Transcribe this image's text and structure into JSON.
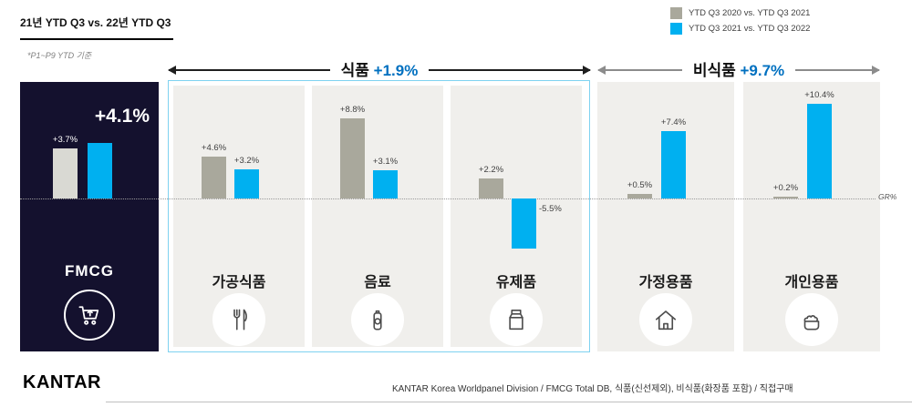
{
  "colors": {
    "gray_bar": "#a9a89c",
    "blue_bar": "#00b0f0",
    "fmcg_gray_bar": "#d9d9d3",
    "accent_blue": "#0070c0",
    "dark_panel": "#14112e"
  },
  "header": {
    "title": "21년 YTD Q3 vs. 22년 YTD Q3",
    "note": "*P1~P9 YTD 기준",
    "legend": [
      {
        "label": "YTD Q3 2020 vs. YTD Q3 2021"
      },
      {
        "label": "YTD Q3 2021 vs. YTD Q3 2022"
      }
    ]
  },
  "sections": {
    "food": {
      "name": "식품",
      "growth": "+1.9%"
    },
    "nonfood": {
      "name": "비식품",
      "growth": "+9.7%"
    }
  },
  "fmcg": {
    "headline": "+4.1%"
  },
  "axis": {
    "baseline_label": "GR%"
  },
  "chart_data": {
    "type": "bar",
    "title": "21년 YTD Q3 vs. 22년 YTD Q3",
    "categories": [
      "FMCG",
      "가공식품",
      "음료",
      "유제품",
      "가정용품",
      "개인용품"
    ],
    "series": [
      {
        "name": "YTD Q3 2020 vs. YTD Q3 2021",
        "color": "#a9a89c",
        "values": [
          3.7,
          4.6,
          8.8,
          2.2,
          0.5,
          0.2
        ]
      },
      {
        "name": "YTD Q3 2021 vs. YTD Q3 2022",
        "color": "#00b0f0",
        "values": [
          4.1,
          3.2,
          3.1,
          -5.5,
          7.4,
          10.4
        ]
      }
    ],
    "groups": [
      {
        "label": "식품",
        "growth": "+1.9%",
        "members": [
          "가공식품",
          "음료",
          "유제품"
        ]
      },
      {
        "label": "비식품",
        "growth": "+9.7%",
        "members": [
          "가정용품",
          "개인용품"
        ]
      }
    ],
    "ylabel": "GR%",
    "value_suffix": "%",
    "legend_position": "top-right",
    "grid": false
  },
  "footer": {
    "logo": "KANTAR",
    "source": "KANTAR Korea Worldpanel Division / FMCG Total DB, 식품(신선제외), 비식품(화장품 포함) / 직접구매"
  }
}
